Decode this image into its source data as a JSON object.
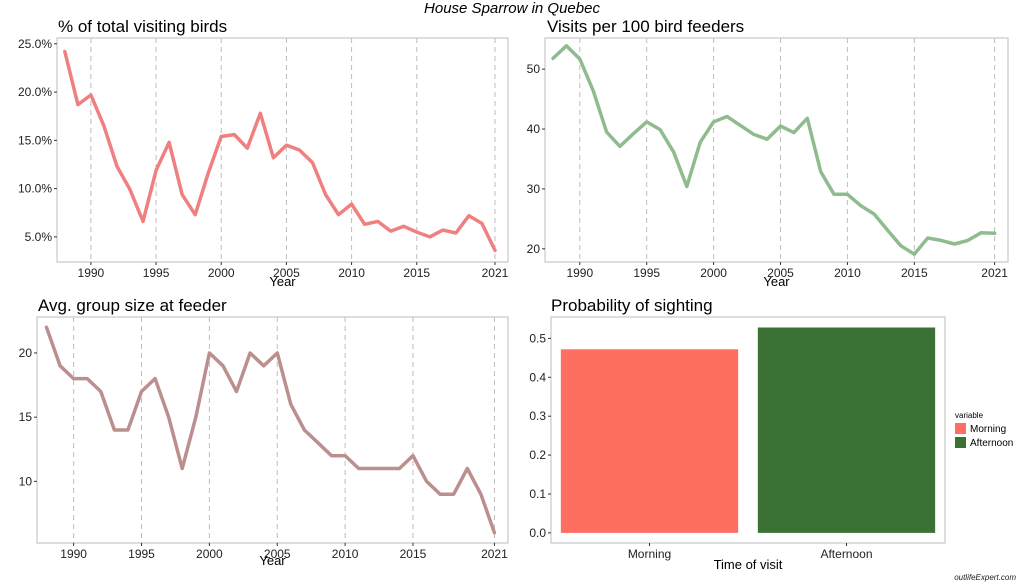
{
  "figure": {
    "title": "House Sparrow in Quebec",
    "credit": "outlifeExpert.com"
  },
  "colors": {
    "pct_line": "#f08080",
    "visits_line": "#8fbc8f",
    "group_line": "#bc8f8f",
    "morning_bar": "#ff6f61",
    "afternoon_bar": "#3a7134",
    "grid": "#bdbdbd",
    "border": "#bdbdbd"
  },
  "chart_data": [
    {
      "type": "line",
      "title": "% of total visiting birds",
      "xlabel": "Year",
      "ylabel": "",
      "x": [
        1988,
        1989,
        1990,
        1991,
        1992,
        1993,
        1994,
        1995,
        1996,
        1997,
        1998,
        1999,
        2000,
        2001,
        2002,
        2003,
        2004,
        2005,
        2006,
        2007,
        2008,
        2009,
        2010,
        2011,
        2012,
        2013,
        2014,
        2015,
        2016,
        2017,
        2018,
        2019,
        2020,
        2021
      ],
      "y": [
        24.2,
        18.7,
        19.7,
        16.5,
        12.3,
        9.9,
        6.6,
        11.9,
        14.8,
        9.4,
        7.3,
        11.6,
        15.4,
        15.6,
        14.2,
        17.8,
        13.2,
        14.5,
        14.0,
        12.7,
        9.4,
        7.3,
        8.4,
        6.3,
        6.6,
        5.6,
        6.1,
        5.5,
        5.0,
        5.7,
        5.4,
        7.2,
        6.4,
        3.6
      ],
      "xlim": [
        1987.4,
        2022.0
      ],
      "ylim": [
        2.4,
        25.6
      ],
      "xticks": [
        1990,
        1995,
        2000,
        2005,
        2010,
        2015,
        2021
      ],
      "xtick_labels": [
        "1990",
        "1995",
        "2000",
        "2005",
        "2010",
        "2015",
        "2021"
      ],
      "yticks": [
        5,
        10,
        15,
        20,
        25
      ],
      "ytick_labels": [
        "5.0%",
        "10.0%",
        "15.0%",
        "20.0%",
        "25.0%"
      ],
      "grid": "vertical dashed"
    },
    {
      "type": "line",
      "title": "Visits per 100 bird feeders",
      "xlabel": "Year",
      "ylabel": "",
      "x": [
        1988,
        1989,
        1990,
        1991,
        1992,
        1993,
        1994,
        1995,
        1996,
        1997,
        1998,
        1999,
        2000,
        2001,
        2002,
        2003,
        2004,
        2005,
        2006,
        2007,
        2008,
        2009,
        2010,
        2011,
        2012,
        2013,
        2014,
        2015,
        2016,
        2017,
        2018,
        2019,
        2020,
        2021
      ],
      "y": [
        51.8,
        53.9,
        51.7,
        46.4,
        39.5,
        37.1,
        39.2,
        41.2,
        39.9,
        36.2,
        30.4,
        37.8,
        41.2,
        42.1,
        40.6,
        39.1,
        38.3,
        40.5,
        39.4,
        41.8,
        32.9,
        29.1,
        29.1,
        27.2,
        25.8,
        23.1,
        20.5,
        19.1,
        21.8,
        21.4,
        20.8,
        21.4,
        22.7,
        22.6
      ],
      "xlim": [
        1987.4,
        2022.0
      ],
      "ylim": [
        17.8,
        55.2
      ],
      "xticks": [
        1990,
        1995,
        2000,
        2005,
        2010,
        2015,
        2021
      ],
      "xtick_labels": [
        "1990",
        "1995",
        "2000",
        "2005",
        "2010",
        "2015",
        "2021"
      ],
      "yticks": [
        20,
        30,
        40,
        50
      ],
      "ytick_labels": [
        "20",
        "30",
        "40",
        "50"
      ],
      "grid": "vertical dashed"
    },
    {
      "type": "line",
      "title": "Avg. group size at feeder",
      "xlabel": "Year",
      "ylabel": "",
      "x": [
        1988,
        1989,
        1990,
        1991,
        1992,
        1993,
        1994,
        1995,
        1996,
        1997,
        1998,
        1999,
        2000,
        2001,
        2002,
        2003,
        2004,
        2005,
        2006,
        2007,
        2008,
        2009,
        2010,
        2011,
        2012,
        2013,
        2014,
        2015,
        2016,
        2017,
        2018,
        2019,
        2020,
        2021
      ],
      "y": [
        22,
        19,
        18,
        18,
        17,
        14,
        14,
        17,
        18,
        15,
        11,
        15,
        20,
        19,
        17,
        20,
        19,
        20,
        16,
        14,
        13,
        12,
        12,
        11,
        11,
        11,
        11,
        12,
        10,
        9,
        9,
        11,
        9,
        6
      ],
      "xlim": [
        1987.3,
        2022.0
      ],
      "ylim": [
        5.2,
        22.8
      ],
      "xticks": [
        1990,
        1995,
        2000,
        2005,
        2010,
        2015,
        2021
      ],
      "xtick_labels": [
        "1990",
        "1995",
        "2000",
        "2005",
        "2010",
        "2015",
        "2021"
      ],
      "yticks": [
        10,
        15,
        20
      ],
      "ytick_labels": [
        "10",
        "15",
        "20"
      ],
      "grid": "vertical dashed"
    },
    {
      "type": "bar",
      "title": "Probability of sighting",
      "xlabel": "Time of visit",
      "ylabel": "",
      "categories": [
        "Morning",
        "Afternoon"
      ],
      "values": [
        0.472,
        0.528
      ],
      "ylim": [
        -0.026,
        0.555
      ],
      "yticks": [
        0.0,
        0.1,
        0.2,
        0.3,
        0.4,
        0.5
      ],
      "ytick_labels": [
        "0.0",
        "0.1",
        "0.2",
        "0.3",
        "0.4",
        "0.5"
      ],
      "grid": "none",
      "legend": {
        "title": "variable",
        "entries": [
          "Morning",
          "Afternoon"
        ],
        "position": "right"
      }
    }
  ]
}
